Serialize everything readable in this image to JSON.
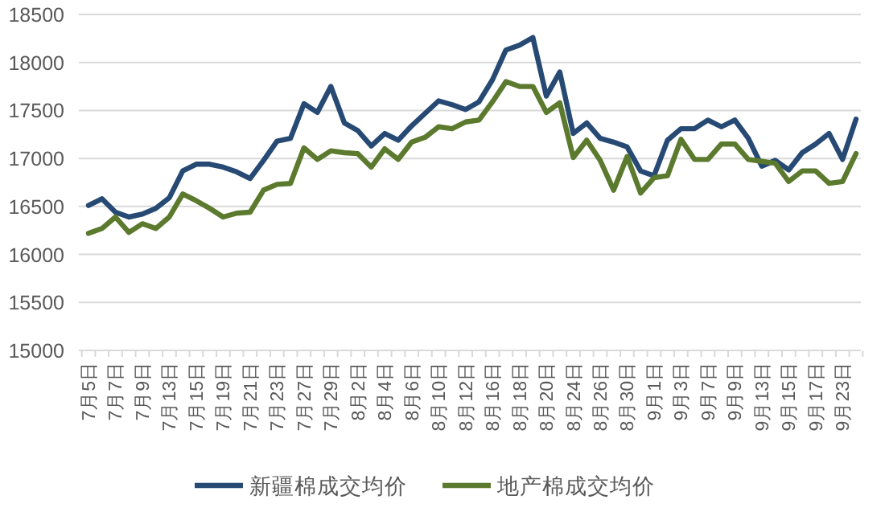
{
  "chart_data": {
    "type": "line",
    "categories": [
      "7月5日",
      null,
      "7月7日",
      null,
      "7月9日",
      null,
      "7月13日",
      null,
      "7月15日",
      null,
      "7月19日",
      null,
      "7月21日",
      null,
      "7月23日",
      null,
      "7月27日",
      null,
      "7月29日",
      null,
      "8月2日",
      null,
      "8月4日",
      null,
      "8月6日",
      null,
      "8月10日",
      null,
      "8月12日",
      null,
      "8月16日",
      null,
      "8月18日",
      null,
      "8月20日",
      null,
      "8月24日",
      null,
      "8月26日",
      null,
      "8月30日",
      null,
      "9月1日",
      null,
      "9月3日",
      null,
      "9月7日",
      null,
      "9月9日",
      null,
      "9月13日",
      null,
      "9月15日",
      null,
      "9月17日",
      null,
      "9月23日",
      null
    ],
    "series": [
      {
        "name": "新疆棉成交均价",
        "color": "#264a73",
        "values": [
          16510,
          16580,
          16440,
          16390,
          16420,
          16480,
          16590,
          16870,
          16940,
          16940,
          16910,
          16860,
          16790,
          16980,
          17180,
          17210,
          17570,
          17480,
          17750,
          17370,
          17290,
          17130,
          17260,
          17190,
          17340,
          17470,
          17600,
          17560,
          17510,
          17590,
          17820,
          18130,
          18180,
          18260,
          17650,
          17900,
          17260,
          17370,
          17210,
          17170,
          17120,
          16870,
          16820,
          17190,
          17310,
          17310,
          17400,
          17330,
          17400,
          17210,
          16920,
          16980,
          16880,
          17060,
          17150,
          17260,
          16990,
          17410
        ]
      },
      {
        "name": "地产棉成交均价",
        "color": "#5b7a2e",
        "values": [
          16220,
          16270,
          16390,
          16230,
          16320,
          16270,
          16390,
          16630,
          16560,
          16480,
          16390,
          16430,
          16440,
          16670,
          16730,
          16740,
          17110,
          16990,
          17080,
          17060,
          17050,
          16910,
          17100,
          16990,
          17170,
          17220,
          17330,
          17310,
          17380,
          17400,
          17590,
          17800,
          17750,
          17750,
          17480,
          17580,
          17010,
          17190,
          16980,
          16670,
          17020,
          16640,
          16800,
          16820,
          17200,
          16990,
          16990,
          17150,
          17150,
          16990,
          16970,
          16950,
          16760,
          16870,
          16870,
          16740,
          16760,
          17050
        ]
      }
    ],
    "ylim": [
      15000,
      18500
    ],
    "yticks": [
      15000,
      15500,
      16000,
      16500,
      17000,
      17500,
      18000,
      18500
    ],
    "grid": "y",
    "legend": "bottom"
  }
}
